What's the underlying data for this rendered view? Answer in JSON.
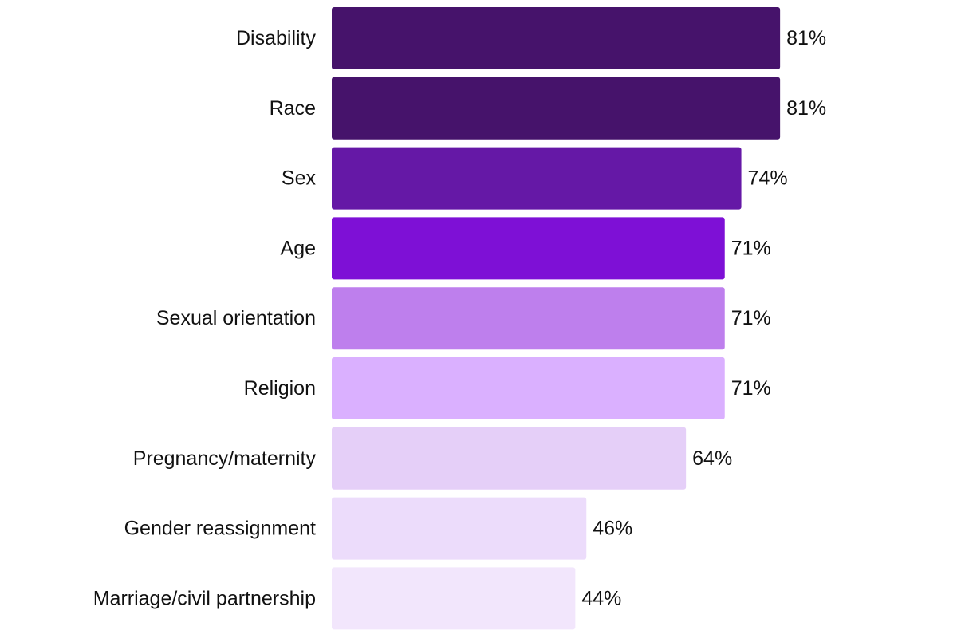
{
  "chart_data": {
    "type": "bar",
    "orientation": "horizontal",
    "title": "",
    "xlabel": "",
    "ylabel": "",
    "xlim": [
      0,
      100
    ],
    "grid": false,
    "legend": "none",
    "categories": [
      "Disability",
      "Race",
      "Sex",
      "Age",
      "Sexual orientation",
      "Religion",
      "Pregnancy/maternity",
      "Gender reassignment",
      "Marriage/civil partnership"
    ],
    "values": [
      81,
      81,
      74,
      71,
      71,
      71,
      64,
      46,
      44
    ],
    "value_labels": [
      "81%",
      "81%",
      "74%",
      "71%",
      "71%",
      "71%",
      "64%",
      "46%",
      "44%"
    ],
    "colors": [
      "#46136b",
      "#46136b",
      "#6518a6",
      "#7e10d6",
      "#be7fed",
      "#dab0ff",
      "#e5cff8",
      "#ecdcfb",
      "#f2e6fc"
    ]
  }
}
